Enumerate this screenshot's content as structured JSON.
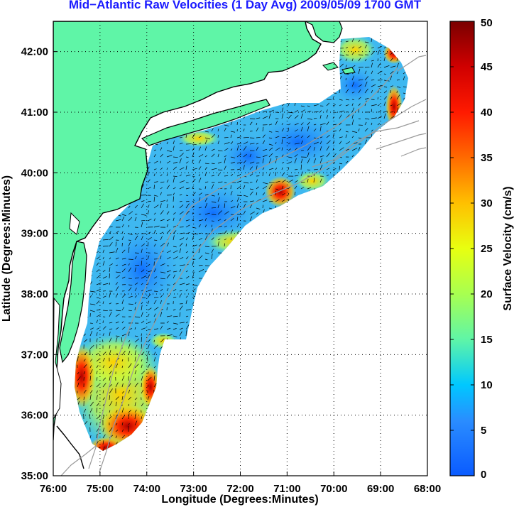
{
  "title": "Mid−Atlantic Raw Velocities (1 Day Avg) 2009/05/09 1700 GMT",
  "axes": {
    "xlabel": "Longitude (Degrees:Minutes)",
    "ylabel": "Latitude (Degrees:Minutes)",
    "x_ticks": [
      "76:00",
      "75:00",
      "74:00",
      "73:00",
      "72:00",
      "71:00",
      "70:00",
      "69:00",
      "68:00"
    ],
    "y_ticks": [
      "35:00",
      "36:00",
      "37:00",
      "38:00",
      "39:00",
      "40:00",
      "41:00",
      "42:00"
    ],
    "x_range_deg": [
      -76,
      -68
    ],
    "y_range_deg": [
      35,
      42.5
    ],
    "grid": "dotted"
  },
  "colorbar": {
    "label": "Surface Velocity (cm/s)",
    "ticks": [
      "0",
      "5",
      "10",
      "15",
      "20",
      "25",
      "30",
      "35",
      "40",
      "45",
      "50"
    ],
    "range": [
      0,
      50
    ],
    "colormap": "jet"
  },
  "colors": {
    "land": "#5ff5a7",
    "coast": "#000000",
    "bathymetry": "#9a9a9a",
    "title": "#1a1aff",
    "arrows": "#000000"
  }
}
